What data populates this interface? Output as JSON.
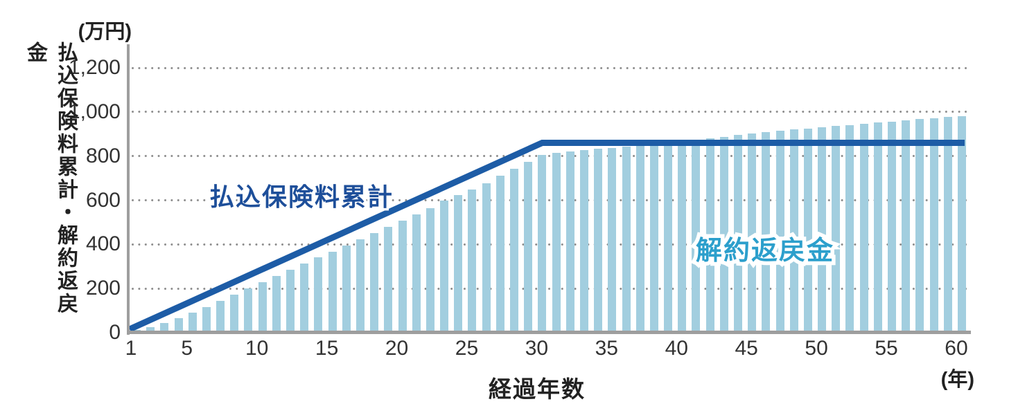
{
  "labels": {
    "y_unit": "(万円)",
    "y_axis_title": "払込保険料累計・解約返戻金",
    "x_axis_title": "経過年数",
    "x_unit": "(年)"
  },
  "annotations": {
    "line_label": {
      "text": "払込保険料累計",
      "color": "#1E4F9A"
    },
    "bar_label": {
      "text": "解約返戻金",
      "color": "#2C9FCC"
    }
  },
  "colors": {
    "bar": "#A2CEDF",
    "line": "#1D5CA6",
    "grid_dot": "#8F8F8F",
    "axis": "#9E9E9E",
    "tick_text": "#333333",
    "label_text": "#222222",
    "background": "#FFFFFF"
  },
  "chart_data": {
    "type": "bar",
    "title": "",
    "xlabel": "経過年数",
    "x_unit": "(年)",
    "ylabel": "払込保険料累計・解約返戻金",
    "y_unit": "(万円)",
    "ylim": [
      0,
      1200
    ],
    "xlim_years": [
      1,
      60
    ],
    "grid": {
      "horizontal": true,
      "style": "dotted"
    },
    "legend_position": "inline-annotations",
    "x": [
      1,
      2,
      3,
      4,
      5,
      6,
      7,
      8,
      9,
      10,
      11,
      12,
      13,
      14,
      15,
      16,
      17,
      18,
      19,
      20,
      21,
      22,
      23,
      24,
      25,
      26,
      27,
      28,
      29,
      30,
      31,
      32,
      33,
      34,
      35,
      36,
      37,
      38,
      39,
      40,
      41,
      42,
      43,
      44,
      45,
      46,
      47,
      48,
      49,
      50,
      51,
      52,
      53,
      54,
      55,
      56,
      57,
      58,
      59,
      60
    ],
    "xticks": [
      1,
      5,
      10,
      15,
      20,
      25,
      30,
      35,
      40,
      45,
      50,
      55,
      60
    ],
    "yticks": [
      0,
      200,
      400,
      600,
      800,
      1000,
      1200
    ],
    "ytick_labels": [
      "0",
      "200",
      "400",
      "600",
      "800",
      "1,000",
      "1,200"
    ],
    "series": [
      {
        "name": "解約返戻金",
        "type": "bar",
        "color": "#A2CEDF",
        "values": [
          12,
          25,
          45,
          66,
          90,
          117,
          144,
          172,
          200,
          228,
          256,
          284,
          312,
          340,
          368,
          396,
          424,
          452,
          480,
          508,
          535,
          565,
          598,
          625,
          650,
          678,
          710,
          742,
          774,
          806,
          814,
          821,
          827,
          832,
          837,
          843,
          849,
          855,
          861,
          867,
          874,
          881,
          888,
          895,
          901,
          908,
          914,
          920,
          925,
          931,
          936,
          941,
          946,
          951,
          956,
          961,
          967,
          972,
          976,
          980
        ]
      },
      {
        "name": "払込保険料累計",
        "type": "line",
        "color": "#1D5CA6",
        "points": [
          [
            1,
            0
          ],
          [
            30,
            860
          ],
          [
            60,
            860
          ]
        ]
      }
    ]
  }
}
